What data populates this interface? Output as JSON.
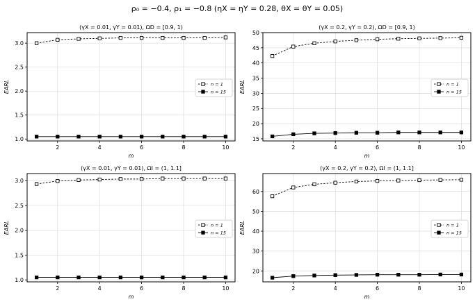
{
  "figure": {
    "suptitle": "ρ₀ = −0.4,  ρ₁ = −0.8   (ηX = ηY = 0.28, θX = θY = 0.05)"
  },
  "chart_data": [
    {
      "type": "line",
      "title": "(γX = 0.01, γY = 0.01), ΩD = [0.9, 1)",
      "xlabel": "m",
      "ylabel": "EARL",
      "x": [
        1,
        2,
        3,
        4,
        5,
        6,
        7,
        8,
        9,
        10
      ],
      "xticks": [
        2,
        4,
        6,
        8,
        10
      ],
      "yticks": [
        1.0,
        1.5,
        2.0,
        2.5,
        3.0
      ],
      "ytick_labels": [
        "1.0",
        "1.5",
        "2.0",
        "2.5",
        "3.0"
      ],
      "ylim": [
        0.96,
        3.22
      ],
      "xlim": [
        0.55,
        10.45
      ],
      "grid": true,
      "legend_position": "center-right",
      "series": [
        {
          "name": "n = 1",
          "style": "dashed",
          "marker": "open-square",
          "values": [
            3.0,
            3.07,
            3.09,
            3.1,
            3.11,
            3.11,
            3.11,
            3.11,
            3.11,
            3.12
          ]
        },
        {
          "name": "n = 15",
          "style": "solid",
          "marker": "filled-square",
          "values": [
            1.05,
            1.05,
            1.05,
            1.05,
            1.05,
            1.05,
            1.05,
            1.05,
            1.05,
            1.05
          ]
        }
      ]
    },
    {
      "type": "line",
      "title": "(γX = 0.2, γY = 0.2), ΩD = [0.9, 1)",
      "xlabel": "m",
      "ylabel": "EARL",
      "x": [
        1,
        2,
        3,
        4,
        5,
        6,
        7,
        8,
        9,
        10
      ],
      "xticks": [
        2,
        4,
        6,
        8,
        10
      ],
      "yticks": [
        15,
        20,
        25,
        30,
        35,
        40,
        45,
        50
      ],
      "ytick_labels": [
        "15",
        "20",
        "25",
        "30",
        "35",
        "40",
        "45",
        "50"
      ],
      "ylim": [
        14.3,
        50
      ],
      "xlim": [
        0.55,
        10.45
      ],
      "grid": true,
      "legend_position": "center-right",
      "series": [
        {
          "name": "n = 1",
          "style": "dashed",
          "marker": "open-square",
          "values": [
            42.3,
            45.4,
            46.5,
            47.1,
            47.5,
            47.8,
            48.0,
            48.1,
            48.2,
            48.3
          ]
        },
        {
          "name": "n = 15",
          "style": "solid",
          "marker": "filled-square",
          "values": [
            15.8,
            16.5,
            16.8,
            16.9,
            17.0,
            17.0,
            17.1,
            17.1,
            17.1,
            17.1
          ]
        }
      ]
    },
    {
      "type": "line",
      "title": "(γX = 0.01, γY = 0.01), ΩI = (1, 1.1]",
      "xlabel": "m",
      "ylabel": "EARL",
      "x": [
        1,
        2,
        3,
        4,
        5,
        6,
        7,
        8,
        9,
        10
      ],
      "xticks": [
        2,
        4,
        6,
        8,
        10
      ],
      "yticks": [
        1.0,
        1.5,
        2.0,
        2.5,
        3.0
      ],
      "ytick_labels": [
        "1.0",
        "1.5",
        "2.0",
        "2.5",
        "3.0"
      ],
      "ylim": [
        0.96,
        3.14
      ],
      "xlim": [
        0.55,
        10.45
      ],
      "grid": true,
      "legend_position": "center-right",
      "series": [
        {
          "name": "n = 1",
          "style": "dashed",
          "marker": "open-square",
          "values": [
            2.93,
            2.99,
            3.01,
            3.02,
            3.03,
            3.03,
            3.04,
            3.04,
            3.04,
            3.04
          ]
        },
        {
          "name": "n = 15",
          "style": "solid",
          "marker": "filled-square",
          "values": [
            1.05,
            1.05,
            1.05,
            1.05,
            1.05,
            1.05,
            1.05,
            1.05,
            1.05,
            1.05
          ]
        }
      ]
    },
    {
      "type": "line",
      "title": "(γX = 0.2, γY = 0.2), ΩI = (1, 1.1]",
      "xlabel": "m",
      "ylabel": "EARL",
      "x": [
        1,
        2,
        3,
        4,
        5,
        6,
        7,
        8,
        9,
        10
      ],
      "xticks": [
        2,
        4,
        6,
        8,
        10
      ],
      "yticks": [
        20,
        30,
        40,
        50,
        60
      ],
      "ytick_labels": [
        "20",
        "30",
        "40",
        "50",
        "60"
      ],
      "ylim": [
        14.5,
        69
      ],
      "xlim": [
        0.55,
        10.45
      ],
      "grid": true,
      "legend_position": "center-right",
      "series": [
        {
          "name": "n = 1",
          "style": "dashed",
          "marker": "open-square",
          "values": [
            57.6,
            62.0,
            63.6,
            64.4,
            65.0,
            65.3,
            65.5,
            65.7,
            65.8,
            65.9
          ]
        },
        {
          "name": "n = 15",
          "style": "solid",
          "marker": "filled-square",
          "values": [
            16.6,
            17.4,
            17.7,
            17.9,
            18.0,
            18.1,
            18.1,
            18.1,
            18.2,
            18.2
          ]
        }
      ]
    }
  ]
}
